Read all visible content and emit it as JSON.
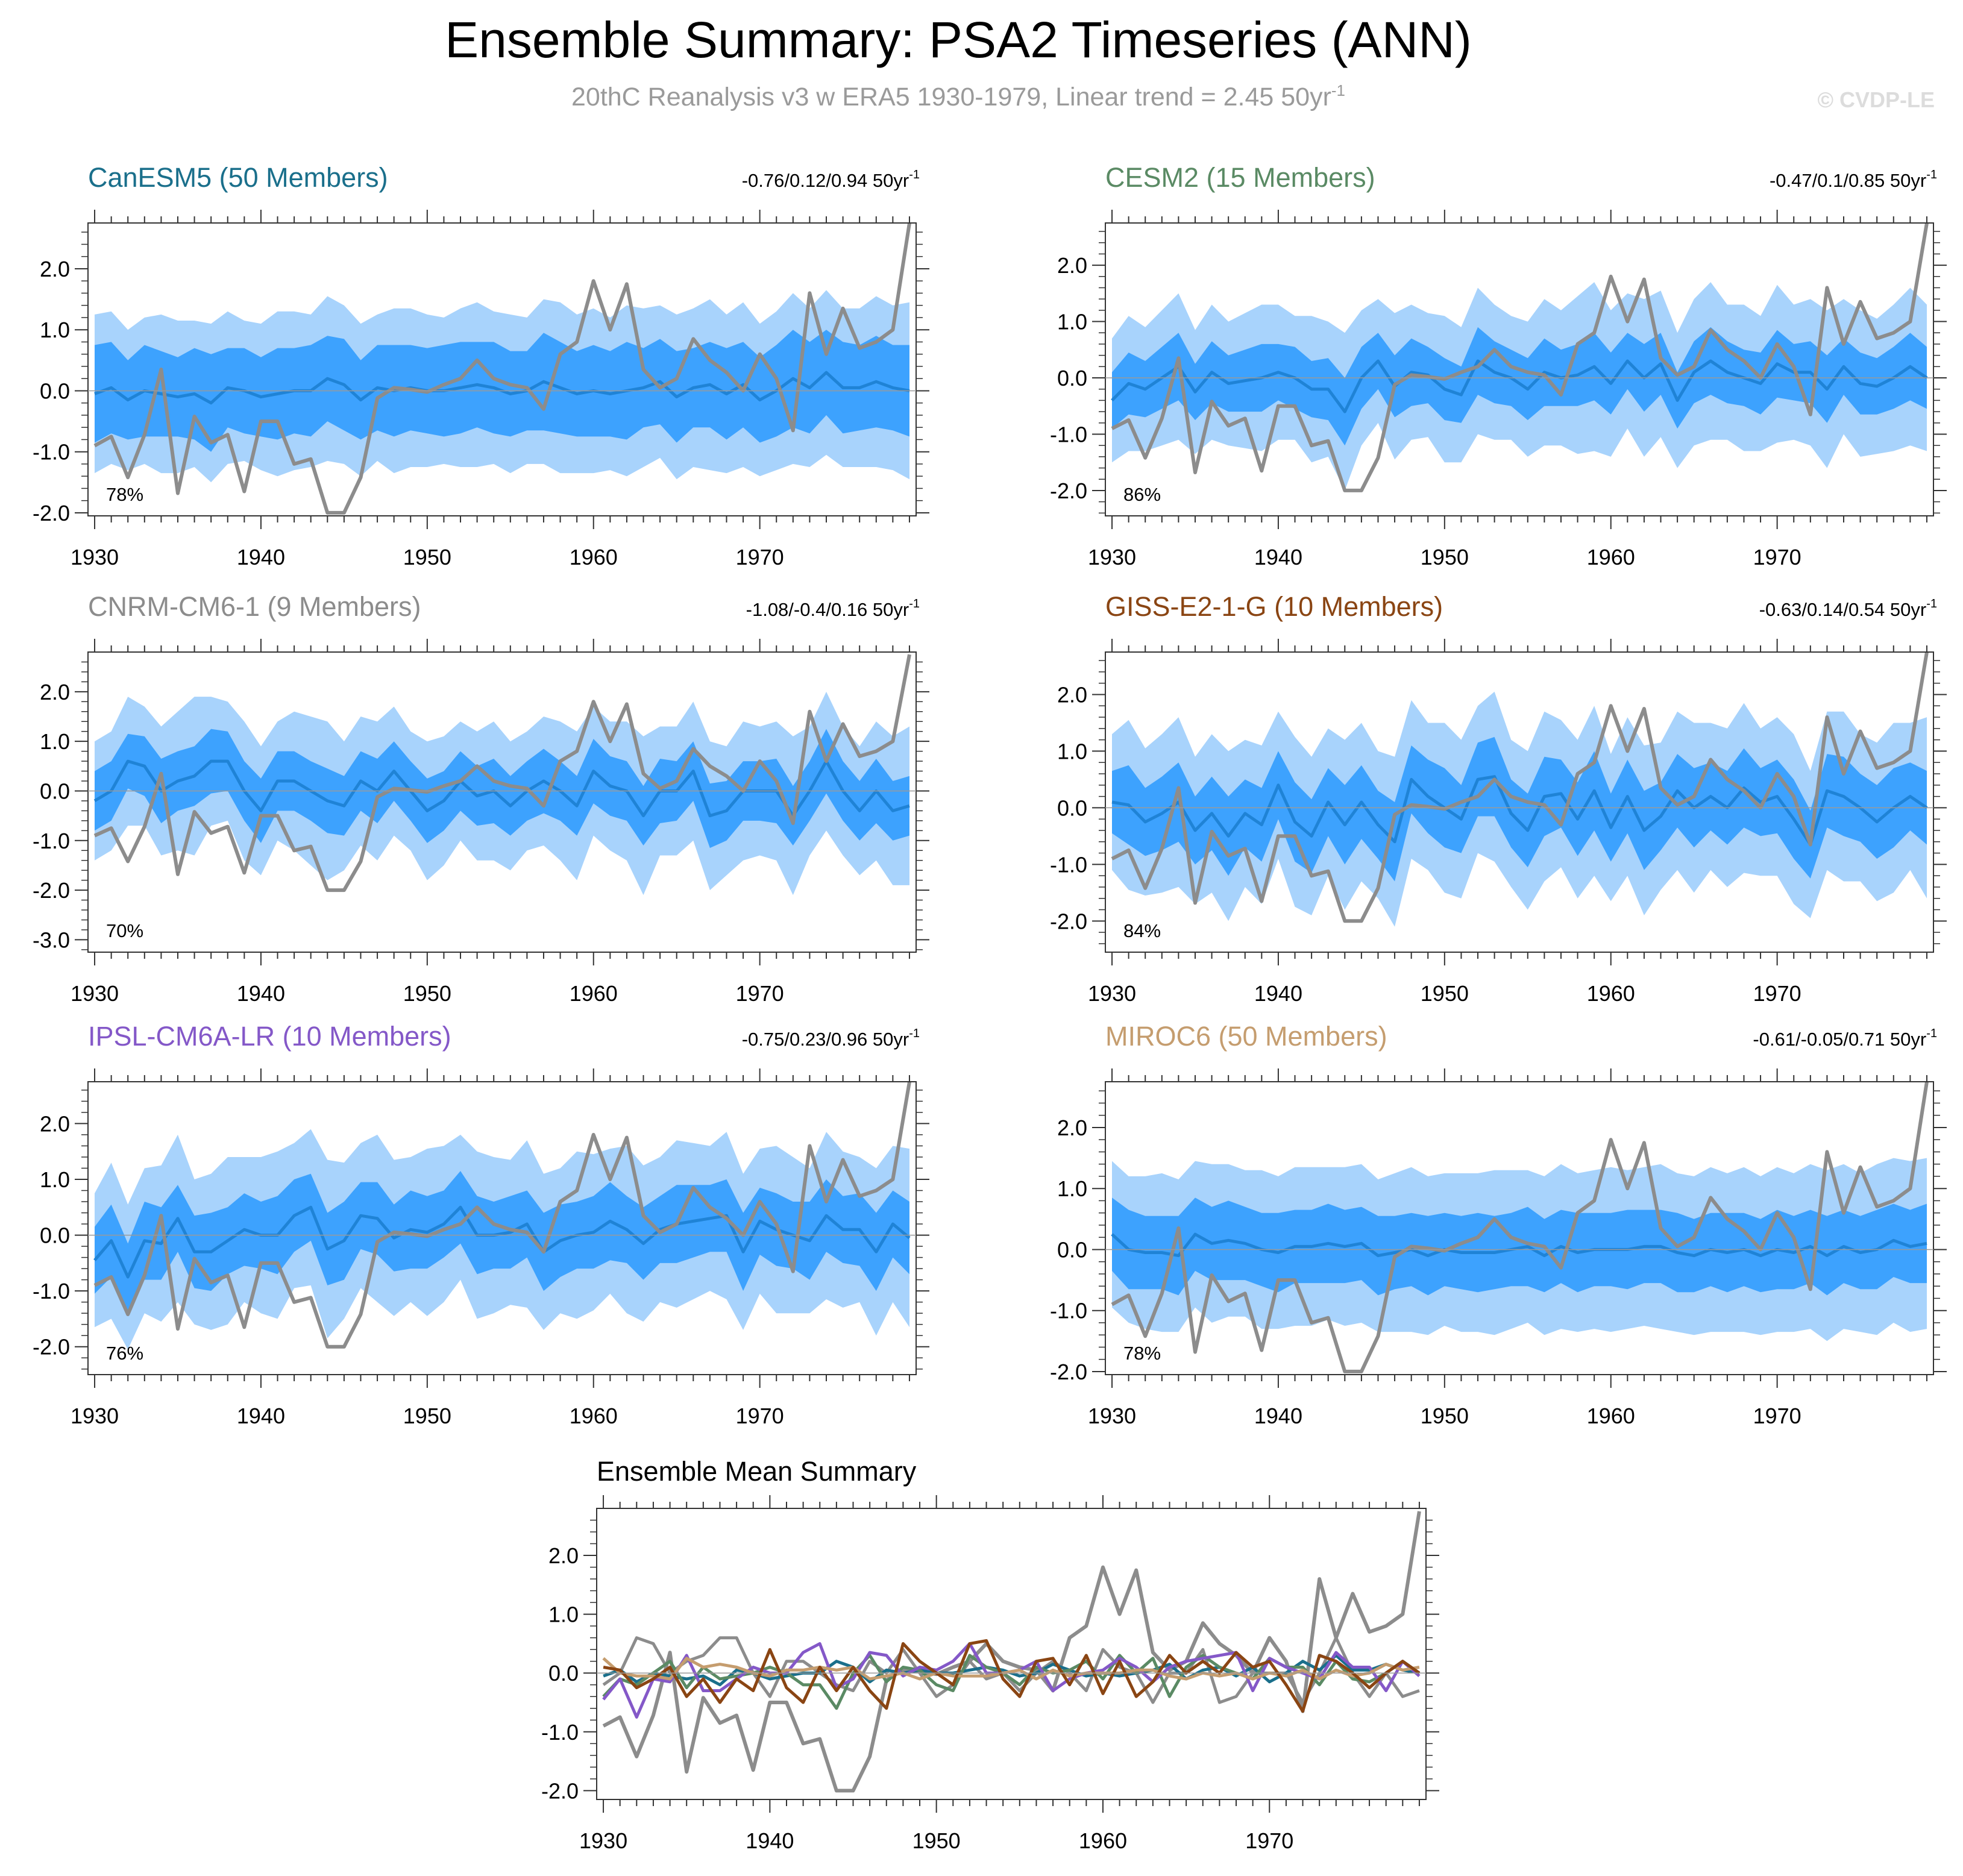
{
  "header": {
    "title": "Ensemble Summary: PSA2 Timeseries (ANN)",
    "subtitle": "20thC Reanalysis v3 w ERA5 1930-1979, Linear trend = 2.45 50yr",
    "subtitle_sup": "-1",
    "watermark": "© CVDP-LE"
  },
  "chart_data": {
    "type": "line",
    "x_years": [
      1930,
      1931,
      1932,
      1933,
      1934,
      1935,
      1936,
      1937,
      1938,
      1939,
      1940,
      1941,
      1942,
      1943,
      1944,
      1945,
      1946,
      1947,
      1948,
      1949,
      1950,
      1951,
      1952,
      1953,
      1954,
      1955,
      1956,
      1957,
      1958,
      1959,
      1960,
      1961,
      1962,
      1963,
      1964,
      1965,
      1966,
      1967,
      1968,
      1969,
      1970,
      1971,
      1972,
      1973,
      1974,
      1975,
      1976,
      1977,
      1978,
      1979
    ],
    "x_ticks": [
      "1930",
      "1940",
      "1950",
      "1960",
      "1970"
    ],
    "observed": {
      "name": "20thC Reanalysis v3 w ERA5",
      "color": "#8c8c8c",
      "values": [
        -0.9,
        -0.75,
        -1.42,
        -0.72,
        0.35,
        -1.68,
        -0.42,
        -0.85,
        -0.72,
        -1.65,
        -0.5,
        -0.5,
        -1.2,
        -1.12,
        -2.0,
        -2.0,
        -1.42,
        -0.12,
        0.05,
        0.02,
        -0.02,
        0.1,
        0.2,
        0.5,
        0.2,
        0.1,
        0.05,
        -0.3,
        0.6,
        0.8,
        1.8,
        1.0,
        1.75,
        0.35,
        0.05,
        0.2,
        0.85,
        0.5,
        0.3,
        0.0,
        0.6,
        0.2,
        -0.65,
        1.6,
        0.6,
        1.35,
        0.7,
        0.8,
        1.0,
        2.75
      ]
    },
    "band_colors": {
      "outer": "#a8d3fc",
      "inner": "#3da2fe",
      "mean": "#1f83d6"
    },
    "panels": [
      {
        "model": "CanESM5 (50 Members)",
        "color": "#1a6f8b",
        "trend_text": "-0.76/0.12/0.94 50yr",
        "trend_sup": "-1",
        "percent": "78%",
        "yticks": [
          "2.0",
          "1.0",
          "0.0",
          "-1.0",
          "-2.0"
        ],
        "ylim": [
          -2.05,
          2.75
        ],
        "mean": [
          -0.05,
          0.05,
          -0.15,
          0.0,
          -0.05,
          -0.1,
          -0.05,
          -0.2,
          0.05,
          0.0,
          -0.1,
          -0.05,
          0.0,
          0.0,
          0.2,
          0.1,
          -0.15,
          0.05,
          0.0,
          0.05,
          0.0,
          0.0,
          0.05,
          0.1,
          0.05,
          -0.05,
          0.0,
          0.15,
          0.05,
          -0.05,
          0.0,
          -0.05,
          0.0,
          0.05,
          0.15,
          -0.1,
          0.05,
          0.1,
          -0.05,
          0.1,
          -0.15,
          0.0,
          0.2,
          0.05,
          0.3,
          0.05,
          0.05,
          0.15,
          0.05,
          0.0
        ],
        "inner_spread": [
          0.8,
          0.75,
          0.65,
          0.75,
          0.7,
          0.65,
          0.75,
          0.8,
          0.65,
          0.7,
          0.65,
          0.75,
          0.7,
          0.75,
          0.7,
          0.75,
          0.65,
          0.7,
          0.75,
          0.7,
          0.7,
          0.75,
          0.75,
          0.7,
          0.75,
          0.7,
          0.65,
          0.8,
          0.75,
          0.7,
          0.75,
          0.7,
          0.8,
          0.65,
          0.7,
          0.75,
          0.65,
          0.7,
          0.75,
          0.7,
          0.7,
          0.75,
          0.8,
          0.75,
          0.7,
          0.75,
          0.7,
          0.75,
          0.7,
          0.75
        ],
        "outer_spread": [
          1.3,
          1.25,
          1.15,
          1.2,
          1.3,
          1.25,
          1.2,
          1.3,
          1.25,
          1.15,
          1.2,
          1.35,
          1.3,
          1.25,
          1.35,
          1.3,
          1.25,
          1.2,
          1.35,
          1.3,
          1.25,
          1.2,
          1.3,
          1.35,
          1.25,
          1.3,
          1.2,
          1.35,
          1.4,
          1.3,
          1.35,
          1.25,
          1.4,
          1.3,
          1.25,
          1.35,
          1.3,
          1.4,
          1.3,
          1.35,
          1.25,
          1.3,
          1.4,
          1.3,
          1.35,
          1.3,
          1.3,
          1.4,
          1.35,
          1.45
        ]
      },
      {
        "model": "CESM2 (15 Members)",
        "color": "#5a8a64",
        "trend_text": "-0.47/0.1/0.85 50yr",
        "trend_sup": "-1",
        "percent": "86%",
        "yticks": [
          "2.0",
          "1.0",
          "0.0",
          "-1.0",
          "-2.0"
        ],
        "ylim": [
          -2.45,
          2.75
        ],
        "mean": [
          -0.4,
          -0.1,
          -0.2,
          0.0,
          0.2,
          -0.25,
          0.1,
          -0.1,
          -0.05,
          0.0,
          0.1,
          0.0,
          -0.2,
          -0.2,
          -0.6,
          0.0,
          0.3,
          -0.15,
          0.1,
          0.05,
          -0.2,
          -0.3,
          0.3,
          0.1,
          0.0,
          -0.2,
          0.1,
          0.0,
          0.05,
          0.2,
          -0.1,
          0.3,
          0.0,
          0.25,
          -0.4,
          0.1,
          0.3,
          0.1,
          0.0,
          -0.1,
          0.25,
          0.1,
          0.1,
          -0.2,
          0.2,
          -0.1,
          -0.15,
          0.0,
          0.2,
          0.0
        ],
        "inner_spread": [
          0.5,
          0.55,
          0.5,
          0.55,
          0.6,
          0.5,
          0.55,
          0.5,
          0.55,
          0.6,
          0.5,
          0.55,
          0.5,
          0.55,
          0.6,
          0.55,
          0.5,
          0.55,
          0.6,
          0.5,
          0.55,
          0.5,
          0.6,
          0.55,
          0.5,
          0.55,
          0.6,
          0.5,
          0.55,
          0.6,
          0.55,
          0.5,
          0.6,
          0.55,
          0.5,
          0.55,
          0.6,
          0.55,
          0.5,
          0.55,
          0.6,
          0.5,
          0.55,
          0.6,
          0.5,
          0.55,
          0.5,
          0.55,
          0.6,
          0.55
        ],
        "outer_spread": [
          1.1,
          1.2,
          1.1,
          1.2,
          1.3,
          1.1,
          1.2,
          1.1,
          1.2,
          1.3,
          1.2,
          1.1,
          1.3,
          1.2,
          1.4,
          1.2,
          1.1,
          1.3,
          1.2,
          1.1,
          1.3,
          1.2,
          1.3,
          1.2,
          1.1,
          1.2,
          1.3,
          1.2,
          1.4,
          1.5,
          1.3,
          1.2,
          1.4,
          1.3,
          1.2,
          1.3,
          1.4,
          1.2,
          1.3,
          1.2,
          1.4,
          1.2,
          1.3,
          1.4,
          1.2,
          1.3,
          1.2,
          1.3,
          1.4,
          1.3
        ]
      },
      {
        "model": "CNRM-CM6-1 (9 Members)",
        "color": "#8c8c8c",
        "trend_text": "-1.08/-0.4/0.16 50yr",
        "trend_sup": "-1",
        "percent": "70%",
        "yticks": [
          "2.0",
          "1.0",
          "0.0",
          "-1.0",
          "-2.0",
          "-3.0"
        ],
        "ylim": [
          -3.25,
          2.8
        ],
        "mean": [
          -0.2,
          0.0,
          0.6,
          0.5,
          0.0,
          0.2,
          0.3,
          0.6,
          0.6,
          0.0,
          -0.4,
          0.2,
          0.2,
          0.0,
          -0.2,
          -0.3,
          0.2,
          0.0,
          0.4,
          0.0,
          -0.4,
          -0.2,
          0.2,
          -0.1,
          0.0,
          -0.3,
          0.0,
          0.2,
          0.0,
          -0.3,
          0.4,
          0.1,
          0.0,
          -0.5,
          0.0,
          0.0,
          0.4,
          -0.5,
          -0.4,
          0.0,
          0.0,
          0.0,
          -0.5,
          0.0,
          0.6,
          0.0,
          -0.4,
          0.0,
          -0.4,
          -0.3
        ],
        "inner_spread": [
          0.6,
          0.6,
          0.55,
          0.6,
          0.65,
          0.6,
          0.6,
          0.65,
          0.6,
          0.6,
          0.65,
          0.6,
          0.6,
          0.6,
          0.65,
          0.6,
          0.6,
          0.65,
          0.6,
          0.6,
          0.65,
          0.6,
          0.6,
          0.6,
          0.65,
          0.6,
          0.6,
          0.65,
          0.6,
          0.6,
          0.65,
          0.6,
          0.6,
          0.6,
          0.65,
          0.6,
          0.6,
          0.65,
          0.6,
          0.6,
          0.6,
          0.65,
          0.6,
          0.6,
          0.65,
          0.6,
          0.6,
          0.65,
          0.6,
          0.6
        ],
        "outer_spread": [
          1.2,
          1.2,
          1.3,
          1.2,
          1.3,
          1.4,
          1.6,
          1.3,
          1.2,
          1.4,
          1.3,
          1.2,
          1.4,
          1.5,
          1.6,
          1.3,
          1.3,
          1.4,
          1.3,
          1.2,
          1.4,
          1.3,
          1.2,
          1.3,
          1.4,
          1.3,
          1.2,
          1.3,
          1.4,
          1.5,
          1.3,
          1.3,
          1.4,
          1.6,
          1.3,
          1.3,
          1.4,
          1.5,
          1.3,
          1.4,
          1.3,
          1.4,
          1.6,
          1.3,
          1.4,
          1.3,
          1.3,
          1.4,
          1.5,
          1.6
        ]
      },
      {
        "model": "GISS-E2-1-G (10 Members)",
        "color": "#8a4513",
        "trend_text": "-0.63/0.14/0.54 50yr",
        "trend_sup": "-1",
        "percent": "84%",
        "yticks": [
          "2.0",
          "1.0",
          "0.0",
          "-1.0",
          "-2.0"
        ],
        "ylim": [
          -2.55,
          2.75
        ],
        "mean": [
          0.1,
          0.05,
          -0.25,
          -0.1,
          0.1,
          -0.4,
          -0.1,
          -0.5,
          -0.1,
          -0.3,
          0.4,
          -0.25,
          -0.5,
          0.1,
          -0.3,
          0.1,
          -0.3,
          -0.6,
          0.5,
          0.2,
          0.0,
          -0.2,
          0.5,
          0.55,
          -0.1,
          -0.4,
          0.2,
          0.25,
          -0.2,
          0.3,
          -0.35,
          0.2,
          -0.4,
          -0.15,
          0.3,
          0.0,
          0.2,
          0.0,
          0.35,
          0.1,
          0.2,
          -0.2,
          -0.65,
          0.3,
          0.2,
          0.0,
          -0.25,
          0.0,
          0.2,
          0.0
        ],
        "inner_spread": [
          0.55,
          0.7,
          0.6,
          0.65,
          0.7,
          0.6,
          0.65,
          0.7,
          0.6,
          0.65,
          0.6,
          0.7,
          0.65,
          0.6,
          0.7,
          0.65,
          0.6,
          0.7,
          0.6,
          0.65,
          0.7,
          0.6,
          0.65,
          0.7,
          0.6,
          0.65,
          0.7,
          0.6,
          0.65,
          0.7,
          0.6,
          0.65,
          0.7,
          0.6,
          0.65,
          0.7,
          0.6,
          0.65,
          0.7,
          0.6,
          0.65,
          0.7,
          0.6,
          0.65,
          0.7,
          0.6,
          0.65,
          0.7,
          0.6,
          0.65
        ],
        "outer_spread": [
          1.2,
          1.5,
          1.3,
          1.4,
          1.5,
          1.3,
          1.4,
          1.5,
          1.3,
          1.4,
          1.3,
          1.5,
          1.4,
          1.3,
          1.5,
          1.4,
          1.3,
          1.5,
          1.4,
          1.3,
          1.5,
          1.4,
          1.3,
          1.5,
          1.3,
          1.4,
          1.5,
          1.3,
          1.4,
          1.5,
          1.3,
          1.4,
          1.5,
          1.3,
          1.4,
          1.5,
          1.3,
          1.4,
          1.5,
          1.3,
          1.4,
          1.5,
          1.3,
          1.4,
          1.5,
          1.3,
          1.4,
          1.5,
          1.3,
          1.6
        ]
      },
      {
        "model": "IPSL-CM6A-LR (10 Members)",
        "color": "#8458c8",
        "trend_text": "-0.75/0.23/0.96 50yr",
        "trend_sup": "-1",
        "percent": "76%",
        "yticks": [
          "2.0",
          "1.0",
          "0.0",
          "-1.0",
          "-2.0"
        ],
        "ylim": [
          -2.5,
          2.75
        ],
        "mean": [
          -0.45,
          -0.1,
          -0.75,
          -0.1,
          -0.15,
          0.3,
          -0.3,
          -0.3,
          -0.1,
          0.1,
          0.0,
          0.0,
          0.35,
          0.5,
          -0.25,
          -0.1,
          0.35,
          0.3,
          -0.05,
          0.1,
          0.05,
          0.2,
          0.5,
          0.0,
          0.0,
          0.05,
          0.2,
          -0.3,
          -0.1,
          0.0,
          0.05,
          0.25,
          0.1,
          -0.15,
          0.1,
          0.2,
          0.25,
          0.3,
          0.35,
          -0.3,
          0.25,
          0.1,
          0.0,
          -0.1,
          0.35,
          0.1,
          0.1,
          -0.3,
          0.2,
          -0.05
        ],
        "inner_spread": [
          0.6,
          0.65,
          0.6,
          0.7,
          0.65,
          0.6,
          0.65,
          0.7,
          0.6,
          0.65,
          0.6,
          0.7,
          0.65,
          0.6,
          0.65,
          0.7,
          0.6,
          0.65,
          0.6,
          0.7,
          0.65,
          0.6,
          0.65,
          0.7,
          0.6,
          0.65,
          0.6,
          0.7,
          0.65,
          0.6,
          0.65,
          0.7,
          0.6,
          0.65,
          0.6,
          0.7,
          0.65,
          0.6,
          0.65,
          0.7,
          0.6,
          0.65,
          0.6,
          0.7,
          0.65,
          0.6,
          0.65,
          0.7,
          0.6,
          0.65
        ],
        "outer_spread": [
          1.2,
          1.4,
          1.3,
          1.3,
          1.4,
          1.5,
          1.3,
          1.4,
          1.5,
          1.3,
          1.4,
          1.5,
          1.3,
          1.4,
          1.6,
          1.4,
          1.3,
          1.5,
          1.4,
          1.3,
          1.5,
          1.4,
          1.3,
          1.5,
          1.4,
          1.3,
          1.5,
          1.4,
          1.3,
          1.5,
          1.4,
          1.3,
          1.5,
          1.4,
          1.3,
          1.5,
          1.4,
          1.3,
          1.5,
          1.4,
          1.3,
          1.5,
          1.4,
          1.3,
          1.5,
          1.4,
          1.3,
          1.5,
          1.4,
          1.6
        ]
      },
      {
        "model": "MIROC6 (50 Members)",
        "color": "#c59d6f",
        "trend_text": "-0.61/-0.05/0.71 50yr",
        "trend_sup": "-1",
        "percent": "78%",
        "yticks": [
          "2.0",
          "1.0",
          "0.0",
          "-1.0",
          "-2.0"
        ],
        "ylim": [
          -2.05,
          2.75
        ],
        "mean": [
          0.25,
          0.0,
          -0.05,
          -0.05,
          -0.1,
          0.25,
          0.1,
          0.15,
          0.1,
          0.0,
          -0.05,
          0.05,
          0.05,
          0.1,
          0.05,
          0.1,
          -0.1,
          -0.05,
          0.0,
          -0.1,
          0.0,
          -0.05,
          -0.05,
          -0.05,
          0.0,
          0.05,
          -0.1,
          0.05,
          -0.05,
          0.0,
          0.0,
          0.0,
          0.05,
          0.05,
          -0.05,
          -0.1,
          0.0,
          -0.05,
          0.0,
          -0.1,
          0.0,
          -0.05,
          0.05,
          -0.1,
          0.05,
          -0.05,
          0.0,
          0.15,
          0.05,
          0.1
        ],
        "inner_spread": [
          0.6,
          0.65,
          0.6,
          0.6,
          0.65,
          0.6,
          0.6,
          0.65,
          0.6,
          0.6,
          0.65,
          0.6,
          0.6,
          0.65,
          0.6,
          0.6,
          0.65,
          0.6,
          0.6,
          0.65,
          0.6,
          0.6,
          0.65,
          0.6,
          0.6,
          0.65,
          0.6,
          0.6,
          0.65,
          0.6,
          0.6,
          0.65,
          0.6,
          0.6,
          0.65,
          0.6,
          0.6,
          0.65,
          0.6,
          0.6,
          0.65,
          0.6,
          0.6,
          0.65,
          0.6,
          0.6,
          0.65,
          0.6,
          0.6,
          0.65
        ],
        "outer_spread": [
          1.2,
          1.2,
          1.25,
          1.3,
          1.25,
          1.2,
          1.3,
          1.25,
          1.2,
          1.3,
          1.25,
          1.3,
          1.3,
          1.25,
          1.3,
          1.3,
          1.25,
          1.3,
          1.35,
          1.3,
          1.25,
          1.3,
          1.3,
          1.35,
          1.3,
          1.25,
          1.3,
          1.35,
          1.3,
          1.3,
          1.35,
          1.3,
          1.3,
          1.35,
          1.3,
          1.3,
          1.35,
          1.3,
          1.35,
          1.3,
          1.35,
          1.3,
          1.35,
          1.4,
          1.35,
          1.3,
          1.4,
          1.35,
          1.4,
          1.4
        ]
      }
    ],
    "mean_summary": {
      "title": "Ensemble Mean Summary",
      "yticks": [
        "2.0",
        "1.0",
        "0.0",
        "-1.0",
        "-2.0"
      ],
      "ylim": [
        -2.15,
        2.8
      ]
    }
  }
}
